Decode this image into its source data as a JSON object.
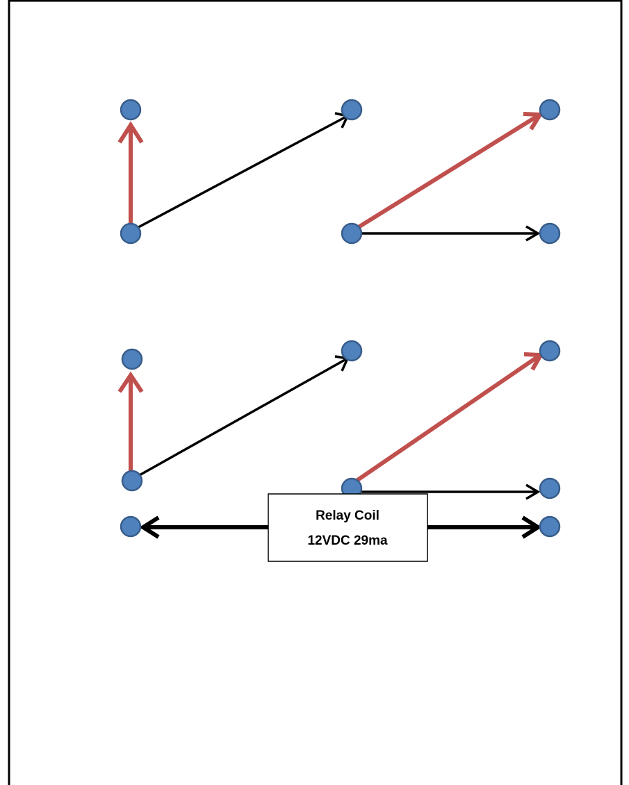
{
  "colors": {
    "border": "#000000",
    "terminal_fill": "#4f81bd",
    "terminal_stroke": "#385d8a",
    "contact_active": "#c0504d",
    "contact_idle": "#000000",
    "box_fill": "#ffffff"
  },
  "relay_coil": {
    "line1": "Relay Coil",
    "line2": "12VDC 29ma"
  }
}
